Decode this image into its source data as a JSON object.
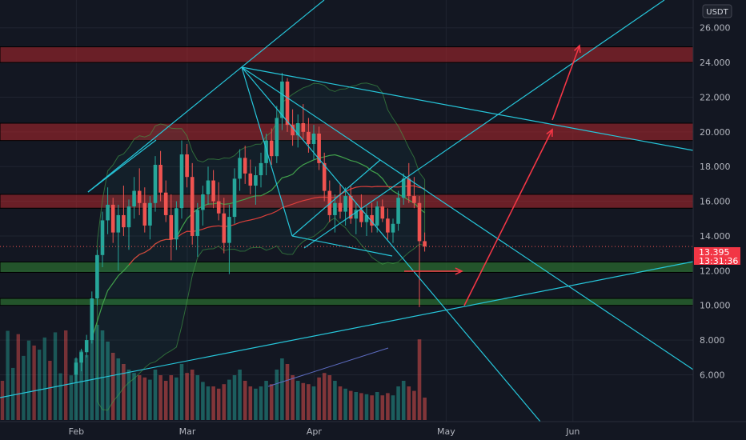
{
  "chart_data": {
    "type": "candlestick",
    "currency": "USDT",
    "y_ticks": [
      "26.000",
      "24.000",
      "22.000",
      "20.000",
      "18.000",
      "16.000",
      "14.000",
      "12.000",
      "10.000",
      "8.000",
      "6.000"
    ],
    "y_tick_values": [
      26,
      24,
      22,
      20,
      18,
      16,
      14,
      12,
      10,
      8,
      6
    ],
    "x_ticks": [
      "Feb",
      "Mar",
      "Apr",
      "May",
      "Jun"
    ],
    "ylim": [
      3.3,
      27.6
    ],
    "last_price": "13.395",
    "countdown": "13:31:36",
    "colors": {
      "background": "#131722",
      "up": "#26a69a",
      "down": "#ef5350",
      "trendline": "#26c6da",
      "resistance_zone": "#b2272b",
      "support_zone": "#2e7d32",
      "arrow": "#f23645",
      "ma_red": "#e53935",
      "ma_green": "#43a047"
    },
    "resistance_zones": [
      [
        24.0,
        24.9
      ],
      [
        19.5,
        20.5
      ],
      [
        15.6,
        16.4
      ]
    ],
    "support_zones": [
      [
        11.9,
        12.5
      ],
      [
        10.0,
        10.4
      ]
    ],
    "candles": [
      {
        "o": 6.0,
        "h": 7.0,
        "l": 5.6,
        "c": 6.7,
        "v": 0.55
      },
      {
        "o": 6.7,
        "h": 7.5,
        "l": 6.2,
        "c": 7.3,
        "v": 0.62
      },
      {
        "o": 7.3,
        "h": 8.3,
        "l": 7.0,
        "c": 8.0,
        "v": 0.58
      },
      {
        "o": 8.0,
        "h": 10.8,
        "l": 7.8,
        "c": 10.4,
        "v": 0.9
      },
      {
        "o": 10.4,
        "h": 13.2,
        "l": 10.0,
        "c": 12.9,
        "v": 0.85
      },
      {
        "o": 12.9,
        "h": 15.4,
        "l": 12.2,
        "c": 14.9,
        "v": 0.8
      },
      {
        "o": 14.9,
        "h": 16.8,
        "l": 14.1,
        "c": 15.8,
        "v": 0.7
      },
      {
        "o": 15.8,
        "h": 16.2,
        "l": 13.6,
        "c": 14.2,
        "v": 0.6
      },
      {
        "o": 14.2,
        "h": 15.8,
        "l": 12.0,
        "c": 15.2,
        "v": 0.55
      },
      {
        "o": 15.2,
        "h": 16.9,
        "l": 14.0,
        "c": 14.5,
        "v": 0.5
      },
      {
        "o": 14.5,
        "h": 16.1,
        "l": 13.2,
        "c": 15.7,
        "v": 0.45
      },
      {
        "o": 15.7,
        "h": 17.4,
        "l": 15.0,
        "c": 16.6,
        "v": 0.42
      },
      {
        "o": 16.6,
        "h": 17.9,
        "l": 15.2,
        "c": 15.9,
        "v": 0.4
      },
      {
        "o": 15.9,
        "h": 16.8,
        "l": 14.2,
        "c": 14.6,
        "v": 0.38
      },
      {
        "o": 14.6,
        "h": 16.3,
        "l": 13.8,
        "c": 15.9,
        "v": 0.36
      },
      {
        "o": 15.9,
        "h": 18.6,
        "l": 15.4,
        "c": 18.1,
        "v": 0.45
      },
      {
        "o": 18.1,
        "h": 18.9,
        "l": 16.0,
        "c": 16.5,
        "v": 0.4
      },
      {
        "o": 16.5,
        "h": 17.2,
        "l": 14.8,
        "c": 15.2,
        "v": 0.35
      },
      {
        "o": 15.2,
        "h": 16.4,
        "l": 12.6,
        "c": 13.8,
        "v": 0.4
      },
      {
        "o": 13.8,
        "h": 16.0,
        "l": 13.2,
        "c": 15.6,
        "v": 0.38
      },
      {
        "o": 15.6,
        "h": 19.5,
        "l": 15.0,
        "c": 18.7,
        "v": 0.5
      },
      {
        "o": 18.7,
        "h": 19.3,
        "l": 16.8,
        "c": 17.4,
        "v": 0.42
      },
      {
        "o": 17.4,
        "h": 18.2,
        "l": 13.5,
        "c": 14.0,
        "v": 0.45
      },
      {
        "o": 14.0,
        "h": 15.9,
        "l": 12.8,
        "c": 15.5,
        "v": 0.4
      },
      {
        "o": 15.5,
        "h": 16.9,
        "l": 14.6,
        "c": 16.4,
        "v": 0.34
      },
      {
        "o": 16.4,
        "h": 18.0,
        "l": 15.8,
        "c": 17.2,
        "v": 0.3
      },
      {
        "o": 17.2,
        "h": 17.8,
        "l": 15.6,
        "c": 16.0,
        "v": 0.3
      },
      {
        "o": 16.0,
        "h": 17.1,
        "l": 14.9,
        "c": 15.3,
        "v": 0.28
      },
      {
        "o": 15.3,
        "h": 16.2,
        "l": 13.0,
        "c": 13.6,
        "v": 0.32
      },
      {
        "o": 13.6,
        "h": 15.8,
        "l": 11.8,
        "c": 15.1,
        "v": 0.36
      },
      {
        "o": 15.1,
        "h": 17.9,
        "l": 14.7,
        "c": 17.3,
        "v": 0.4
      },
      {
        "o": 17.3,
        "h": 19.0,
        "l": 16.6,
        "c": 18.5,
        "v": 0.45
      },
      {
        "o": 18.5,
        "h": 19.2,
        "l": 17.0,
        "c": 17.6,
        "v": 0.35
      },
      {
        "o": 17.6,
        "h": 18.4,
        "l": 16.4,
        "c": 16.9,
        "v": 0.3
      },
      {
        "o": 16.9,
        "h": 18.0,
        "l": 15.8,
        "c": 17.5,
        "v": 0.28
      },
      {
        "o": 17.5,
        "h": 18.8,
        "l": 16.8,
        "c": 18.2,
        "v": 0.3
      },
      {
        "o": 18.2,
        "h": 19.9,
        "l": 17.5,
        "c": 19.5,
        "v": 0.35
      },
      {
        "o": 19.5,
        "h": 20.2,
        "l": 18.1,
        "c": 18.6,
        "v": 0.32
      },
      {
        "o": 18.6,
        "h": 21.5,
        "l": 18.2,
        "c": 20.8,
        "v": 0.45
      },
      {
        "o": 20.8,
        "h": 23.4,
        "l": 20.1,
        "c": 22.9,
        "v": 0.55
      },
      {
        "o": 22.9,
        "h": 23.1,
        "l": 20.0,
        "c": 20.4,
        "v": 0.5
      },
      {
        "o": 20.4,
        "h": 21.3,
        "l": 19.2,
        "c": 19.8,
        "v": 0.4
      },
      {
        "o": 19.8,
        "h": 21.0,
        "l": 19.1,
        "c": 20.5,
        "v": 0.35
      },
      {
        "o": 20.5,
        "h": 21.6,
        "l": 19.6,
        "c": 20.0,
        "v": 0.33
      },
      {
        "o": 20.0,
        "h": 20.8,
        "l": 18.8,
        "c": 19.3,
        "v": 0.32
      },
      {
        "o": 19.3,
        "h": 20.4,
        "l": 18.4,
        "c": 19.9,
        "v": 0.3
      },
      {
        "o": 19.9,
        "h": 20.3,
        "l": 17.8,
        "c": 18.2,
        "v": 0.38
      },
      {
        "o": 18.2,
        "h": 18.8,
        "l": 16.0,
        "c": 16.6,
        "v": 0.42
      },
      {
        "o": 16.6,
        "h": 17.2,
        "l": 14.8,
        "c": 15.2,
        "v": 0.4
      },
      {
        "o": 15.2,
        "h": 16.4,
        "l": 14.2,
        "c": 15.9,
        "v": 0.35
      },
      {
        "o": 15.9,
        "h": 17.0,
        "l": 15.0,
        "c": 15.4,
        "v": 0.3
      },
      {
        "o": 15.4,
        "h": 16.8,
        "l": 14.6,
        "c": 16.3,
        "v": 0.28
      },
      {
        "o": 16.3,
        "h": 16.9,
        "l": 14.7,
        "c": 15.0,
        "v": 0.26
      },
      {
        "o": 15.0,
        "h": 15.9,
        "l": 14.1,
        "c": 15.5,
        "v": 0.25
      },
      {
        "o": 15.5,
        "h": 16.4,
        "l": 14.5,
        "c": 14.8,
        "v": 0.24
      },
      {
        "o": 14.8,
        "h": 15.7,
        "l": 14.0,
        "c": 15.2,
        "v": 0.23
      },
      {
        "o": 15.2,
        "h": 15.9,
        "l": 14.2,
        "c": 14.6,
        "v": 0.22
      },
      {
        "o": 14.6,
        "h": 16.0,
        "l": 14.2,
        "c": 15.7,
        "v": 0.25
      },
      {
        "o": 15.7,
        "h": 16.1,
        "l": 14.8,
        "c": 15.0,
        "v": 0.22
      },
      {
        "o": 15.0,
        "h": 15.6,
        "l": 13.8,
        "c": 14.2,
        "v": 0.24
      },
      {
        "o": 14.2,
        "h": 15.0,
        "l": 13.6,
        "c": 14.7,
        "v": 0.22
      },
      {
        "o": 14.7,
        "h": 16.6,
        "l": 14.3,
        "c": 16.2,
        "v": 0.3
      },
      {
        "o": 16.2,
        "h": 17.6,
        "l": 15.8,
        "c": 17.3,
        "v": 0.35
      },
      {
        "o": 17.3,
        "h": 18.2,
        "l": 15.9,
        "c": 16.3,
        "v": 0.3
      },
      {
        "o": 16.3,
        "h": 17.4,
        "l": 15.6,
        "c": 15.9,
        "v": 0.26
      },
      {
        "o": 15.9,
        "h": 16.3,
        "l": 9.9,
        "c": 13.7,
        "v": 0.72
      },
      {
        "o": 13.7,
        "h": 14.2,
        "l": 13.1,
        "c": 13.395,
        "v": 0.2
      }
    ]
  }
}
